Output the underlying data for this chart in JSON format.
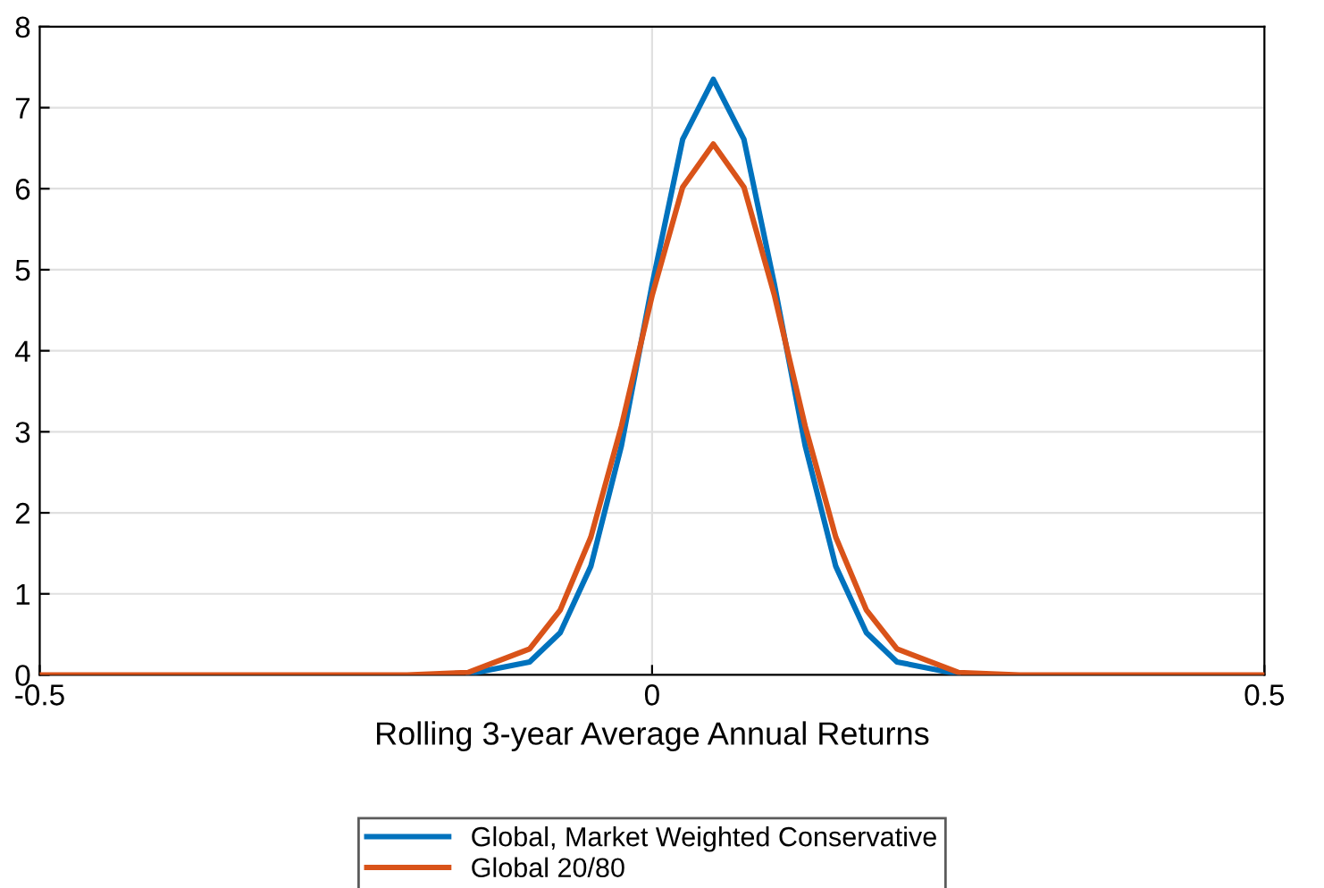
{
  "chart_data": {
    "type": "line",
    "xlabel": "Rolling 3-year Average Annual Returns",
    "x": [
      -0.5,
      -0.3,
      -0.2,
      -0.15,
      -0.1,
      -0.075,
      -0.05,
      -0.025,
      0,
      0.025,
      0.05,
      0.075,
      0.1,
      0.125,
      0.15,
      0.175,
      0.2,
      0.25,
      0.3,
      0.5
    ],
    "series": [
      {
        "name": "Global, Market Weighted Conservative",
        "color": "#0072bd",
        "values": [
          null,
          null,
          null,
          0.01,
          0.16,
          0.52,
          1.34,
          2.83,
          4.81,
          6.61,
          7.35,
          6.61,
          4.81,
          2.83,
          1.34,
          0.52,
          0.16,
          0.01,
          null,
          null
        ]
      },
      {
        "name": "Global 20/80",
        "color": "#d95319",
        "values": [
          0,
          0,
          0,
          0.03,
          0.32,
          0.8,
          1.7,
          3.07,
          4.68,
          6.02,
          6.55,
          6.02,
          4.68,
          3.07,
          1.7,
          0.8,
          0.32,
          0.03,
          0,
          0
        ]
      }
    ],
    "xlim": [
      -0.5,
      0.5
    ],
    "xticks": [
      -0.5,
      0,
      0.5
    ],
    "ylim": [
      0,
      8
    ],
    "yticks": [
      0,
      1,
      2,
      3,
      4,
      5,
      6,
      7,
      8
    ],
    "grid": true,
    "legend": "bottom",
    "line_style": "solid",
    "marker": "none"
  }
}
